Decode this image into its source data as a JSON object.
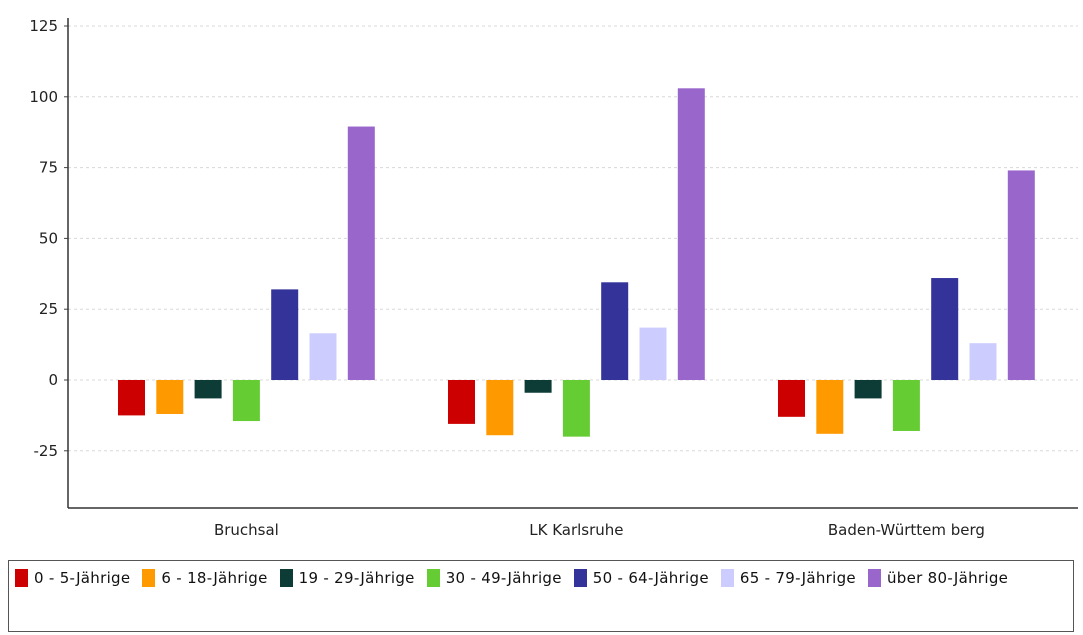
{
  "chart_data": {
    "type": "bar",
    "categories": [
      "Bruchsal",
      "LK Karlsruhe",
      "Baden-Württem berg"
    ],
    "series": [
      {
        "name": "0 - 5-Jährige",
        "color": "#cc0000",
        "values": [
          -12.5,
          -15.5,
          -13
        ]
      },
      {
        "name": "6 - 18-Jährige",
        "color": "#ff9900",
        "values": [
          -12,
          -19.5,
          -19
        ]
      },
      {
        "name": "19 - 29-Jährige",
        "color": "#0d3b36",
        "values": [
          -6.5,
          -4.5,
          -6.5
        ]
      },
      {
        "name": "30 - 49-Jährige",
        "color": "#66cc33",
        "values": [
          -14.5,
          -20,
          -18
        ]
      },
      {
        "name": "50 - 64-Jährige",
        "color": "#333399",
        "values": [
          32,
          34.5,
          36
        ]
      },
      {
        "name": "65 - 79-Jährige",
        "color": "#ccccff",
        "values": [
          16.5,
          18.5,
          13
        ]
      },
      {
        "name": "über 80-Jährige",
        "color": "#9966cc",
        "values": [
          89.5,
          103,
          74
        ]
      }
    ],
    "yticks": [
      125,
      100,
      75,
      50,
      25,
      0,
      -25
    ],
    "ylim": [
      -45,
      128
    ],
    "grid": true,
    "legend": "bottom"
  }
}
